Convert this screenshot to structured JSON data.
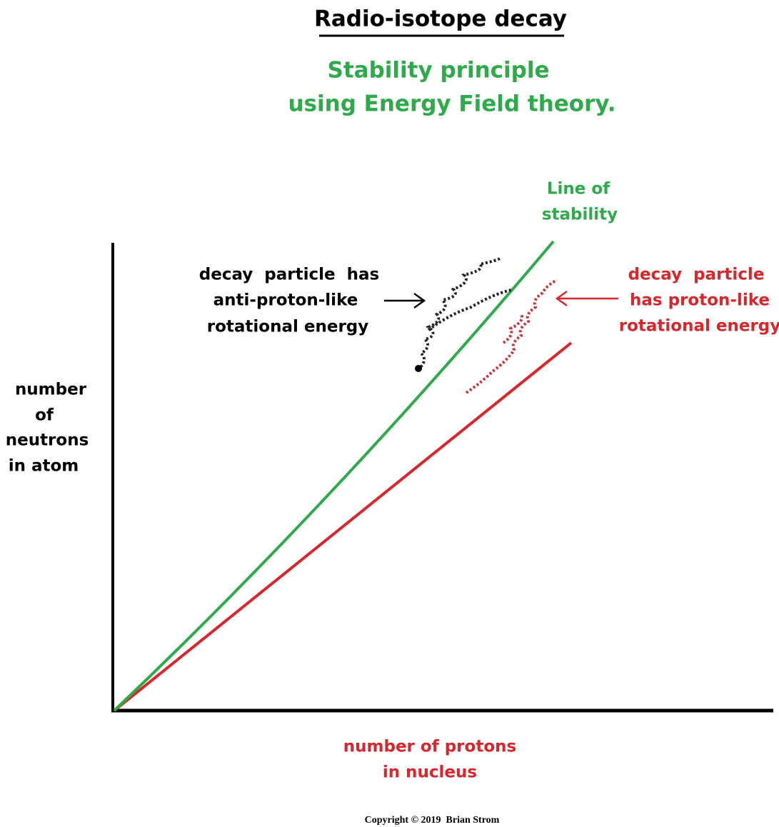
{
  "title": "Radio-isotope decay",
  "subtitle": [
    "Stability principle",
    "using Energy Field theory."
  ],
  "stability_label": [
    "Line of",
    "stability"
  ],
  "left_annotation": [
    "decay  particle  has",
    "anti-proton-like",
    "rotational energy"
  ],
  "right_annotation": [
    "decay  particle",
    "has proton-like",
    "rotational energy"
  ],
  "y_axis_label": [
    "number",
    "of",
    "neutrons",
    "in atom"
  ],
  "x_axis_label": [
    "number of protons",
    "in nucleus"
  ],
  "copyright": "Copyright © 2019  Brian Strom"
}
